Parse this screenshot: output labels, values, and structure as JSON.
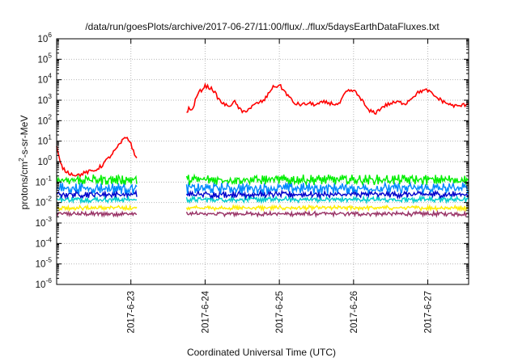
{
  "chart_data": {
    "type": "line",
    "title": "/data/run/goesPlots/archive/2017-06-27/11:00/flux/../flux/5daysEarthDataFluxes.txt",
    "xlabel": "Coordinated Universal Time (UTC)",
    "ylabel": "protons/cm²-s-sr-MeV",
    "y_scale": "log",
    "ylim_exp": [
      -6,
      6
    ],
    "y_ticks": [
      {
        "base": "10",
        "exp": "6"
      },
      {
        "base": "10",
        "exp": "5"
      },
      {
        "base": "10",
        "exp": "4"
      },
      {
        "base": "10",
        "exp": "3"
      },
      {
        "base": "10",
        "exp": "2"
      },
      {
        "base": "10",
        "exp": "1"
      },
      {
        "base": "10",
        "exp": "0"
      },
      {
        "base": "10",
        "exp": "-1"
      },
      {
        "base": "10",
        "exp": "-2"
      },
      {
        "base": "10",
        "exp": "-3"
      },
      {
        "base": "10",
        "exp": "-4"
      },
      {
        "base": "10",
        "exp": "-5"
      },
      {
        "base": "10",
        "exp": "-6"
      }
    ],
    "xlim_days": [
      22.0,
      27.55
    ],
    "x_ticks": [
      {
        "day": 23,
        "label": "2017-6-23"
      },
      {
        "day": 24,
        "label": "2017-6-24"
      },
      {
        "day": 25,
        "label": "2017-6-25"
      },
      {
        "day": 26,
        "label": "2017-6-26"
      },
      {
        "day": 27,
        "label": "2017-6-27"
      }
    ],
    "grid": true,
    "data_gap_days": [
      23.08,
      23.75
    ],
    "series": [
      {
        "color": "#ff0000",
        "points": [
          [
            22.0,
            5
          ],
          [
            22.05,
            0.8
          ],
          [
            22.1,
            0.4
          ],
          [
            22.15,
            0.3
          ],
          [
            22.2,
            0.25
          ],
          [
            22.3,
            0.22
          ],
          [
            22.4,
            0.3
          ],
          [
            22.5,
            0.35
          ],
          [
            22.6,
            0.6
          ],
          [
            22.7,
            1.5
          ],
          [
            22.8,
            4
          ],
          [
            22.9,
            12
          ],
          [
            22.95,
            15
          ],
          [
            23.0,
            8
          ],
          [
            23.05,
            2
          ],
          [
            23.08,
            1.5
          ],
          [
            23.75,
            250
          ],
          [
            23.78,
            400
          ],
          [
            23.82,
            300
          ],
          [
            23.9,
            2000
          ],
          [
            24.0,
            5000
          ],
          [
            24.1,
            3500
          ],
          [
            24.2,
            900
          ],
          [
            24.3,
            500
          ],
          [
            24.4,
            800
          ],
          [
            24.5,
            250
          ],
          [
            24.6,
            400
          ],
          [
            24.7,
            700
          ],
          [
            24.8,
            1000
          ],
          [
            24.9,
            4000
          ],
          [
            25.0,
            5500
          ],
          [
            25.1,
            2000
          ],
          [
            25.2,
            700
          ],
          [
            25.3,
            600
          ],
          [
            25.4,
            700
          ],
          [
            25.5,
            600
          ],
          [
            25.6,
            800
          ],
          [
            25.7,
            700
          ],
          [
            25.8,
            600
          ],
          [
            25.9,
            2500
          ],
          [
            26.0,
            3000
          ],
          [
            26.1,
            1200
          ],
          [
            26.2,
            300
          ],
          [
            26.3,
            250
          ],
          [
            26.4,
            500
          ],
          [
            26.5,
            700
          ],
          [
            26.6,
            800
          ],
          [
            26.7,
            700
          ],
          [
            26.8,
            1500
          ],
          [
            26.9,
            2800
          ],
          [
            27.0,
            3000
          ],
          [
            27.1,
            1500
          ],
          [
            27.2,
            900
          ],
          [
            27.3,
            600
          ],
          [
            27.4,
            500
          ],
          [
            27.5,
            600
          ],
          [
            27.55,
            700
          ]
        ]
      },
      {
        "color": "#00ee00",
        "level": 0.13,
        "spread": 0.18
      },
      {
        "color": "#0088ff",
        "level": 0.05,
        "spread": 0.2
      },
      {
        "color": "#0000cc",
        "level": 0.025,
        "spread": 0.12
      },
      {
        "color": "#00cccc",
        "level": 0.014,
        "spread": 0.1
      },
      {
        "color": "#ffee00",
        "level": 0.0055,
        "spread": 0.08
      },
      {
        "color": "#993366",
        "level": 0.0028,
        "spread": 0.08
      }
    ]
  }
}
